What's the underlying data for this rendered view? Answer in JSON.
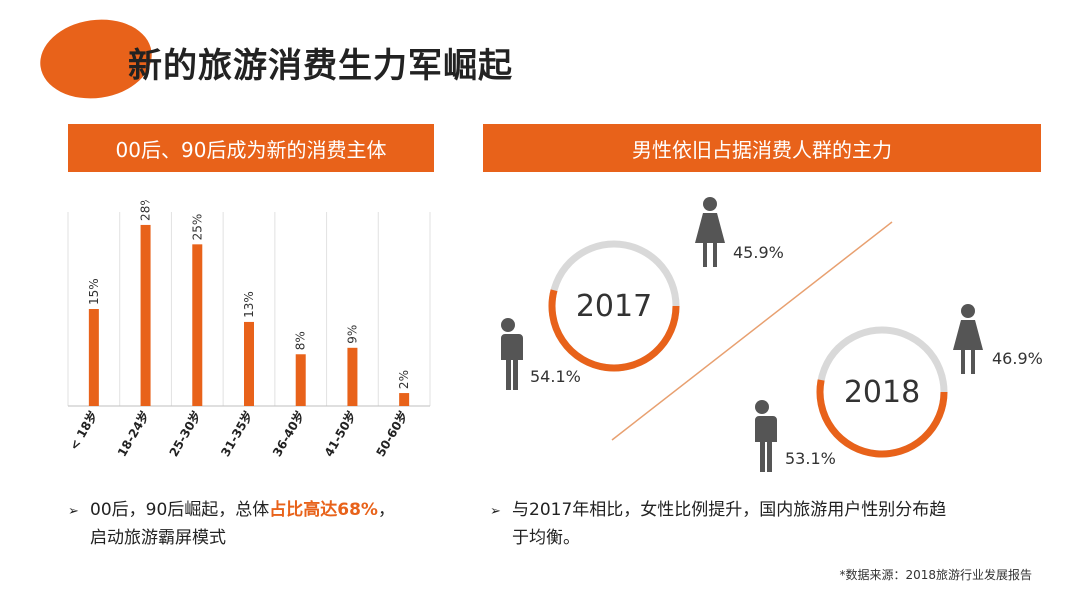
{
  "title": "新的旅游消费生力军崛起",
  "left_banner": "00后、90后成为新的消费主体",
  "right_banner": "男性依旧占据消费人群的主力",
  "chart_data": {
    "type": "bar",
    "categories": [
      "< 18岁",
      "18-24岁",
      "25-30岁",
      "31-35岁",
      "36-40岁",
      "41-50岁",
      "50-60岁"
    ],
    "values": [
      15,
      28,
      25,
      13,
      8,
      9,
      2
    ],
    "value_labels": [
      "15%",
      "28%",
      "25%",
      "13%",
      "8%",
      "9%",
      "2%"
    ],
    "ylim": [
      0,
      30
    ],
    "grid": "vertical",
    "bar_color": "#e8621a"
  },
  "gender": {
    "y2017": {
      "year": "2017",
      "female_pct": "45.9%",
      "male_pct": "54.1%"
    },
    "y2018": {
      "year": "2018",
      "female_pct": "46.9%",
      "male_pct": "53.1%"
    }
  },
  "bullet_left": {
    "prefix": "00后，90后崛起，总体",
    "highlight": "占比高达68%",
    "suffix": "，",
    "line2": "启动旅游霸屏模式"
  },
  "bullet_right": {
    "line1": "与2017年相比，女性比例提升，国内旅游用户性别分布趋",
    "line2": "于均衡。"
  },
  "source": "*数据来源：2018旅游行业发展报告",
  "colors": {
    "accent": "#e8621a",
    "ring_gray": "#d9d9d9",
    "icon_gray": "#555555"
  }
}
